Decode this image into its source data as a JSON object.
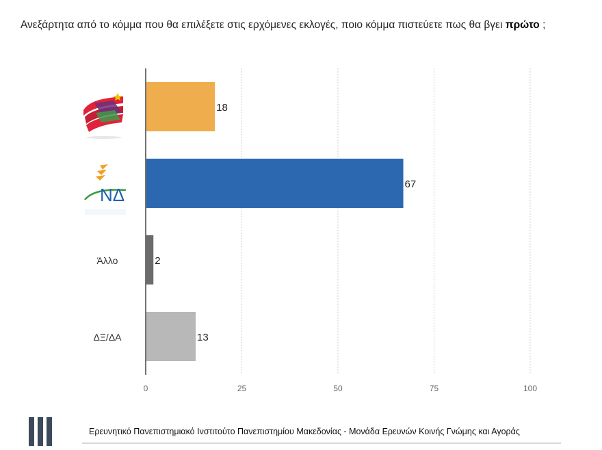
{
  "title": {
    "prefix": "Ανεξάρτητα από το κόμμα που θα επιλέξετε στις ερχόμενες εκλογές, ποιο κόμμα πιστεύετε πως θα βγει ",
    "emphasis": "πρώτο",
    "suffix": " ;"
  },
  "footer": {
    "text": "Ερευνητικό Πανεπιστημιακό Ινστιτούτο Πανεπιστημίου Μακεδονίας - Μονάδα Ερευνών Κοινής Γνώμης και Αγοράς"
  },
  "chart_data": {
    "type": "bar",
    "orientation": "horizontal",
    "categories": [
      "ΣΥΡΙΖΑ",
      "ΝΔ",
      "Άλλο",
      "ΔΞ/ΔΑ"
    ],
    "category_labels_shown": [
      "",
      "ΝΔ",
      "Άλλο",
      "ΔΞ/ΔΑ"
    ],
    "values": [
      18,
      67,
      2,
      13
    ],
    "colors": [
      "#f0ad4e",
      "#2b68b0",
      "#6b6b6b",
      "#b8b8b8"
    ],
    "xlim": [
      0,
      100
    ],
    "xticks": [
      0,
      25,
      50,
      75,
      100
    ],
    "grid": "dashed-vertical",
    "legend": "none"
  }
}
